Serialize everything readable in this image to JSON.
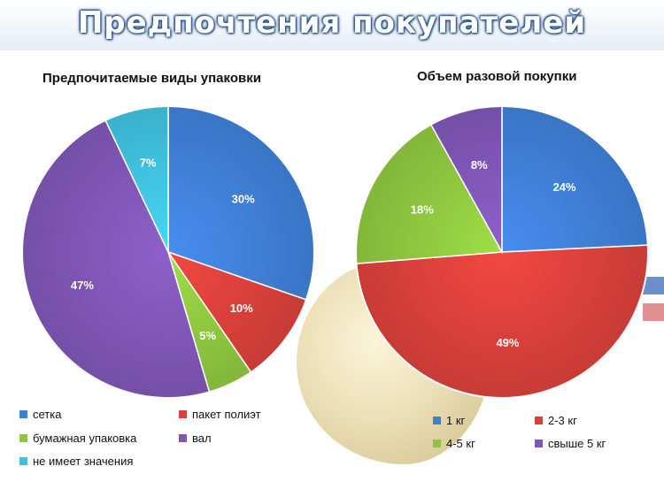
{
  "header": {
    "title": "Предпочтения покупателей"
  },
  "colors": {
    "blue": "#3f7fd6",
    "red": "#d9403b",
    "green": "#8ec63f",
    "purple": "#7f56b5",
    "cyan": "#3fc0dd"
  },
  "chart_data": [
    {
      "type": "pie",
      "title": "Предпочитаемые виды упаковки",
      "categories": [
        "сетка",
        "пакет полиэт",
        "бумажная упаковка",
        "вал",
        "не имеет значения"
      ],
      "values": [
        30,
        10,
        5,
        47,
        7
      ],
      "labels": [
        "30%",
        "10%",
        "5%",
        "47%",
        "7%"
      ],
      "colors": [
        "#3f7fd6",
        "#d9403b",
        "#8ec63f",
        "#7f56b5",
        "#3fc0dd"
      ],
      "legend_position": "bottom"
    },
    {
      "type": "pie",
      "title": "Объем разовой покупки",
      "categories": [
        "1 кг",
        "2-3 кг",
        "4-5 кг",
        "свыше 5 кг"
      ],
      "values": [
        24,
        49,
        18,
        8
      ],
      "labels": [
        "24%",
        "49%",
        "18%",
        "8%"
      ],
      "colors": [
        "#3f7fd6",
        "#d9403b",
        "#8ec63f",
        "#7f56b5"
      ],
      "legend_position": "bottom"
    }
  ]
}
